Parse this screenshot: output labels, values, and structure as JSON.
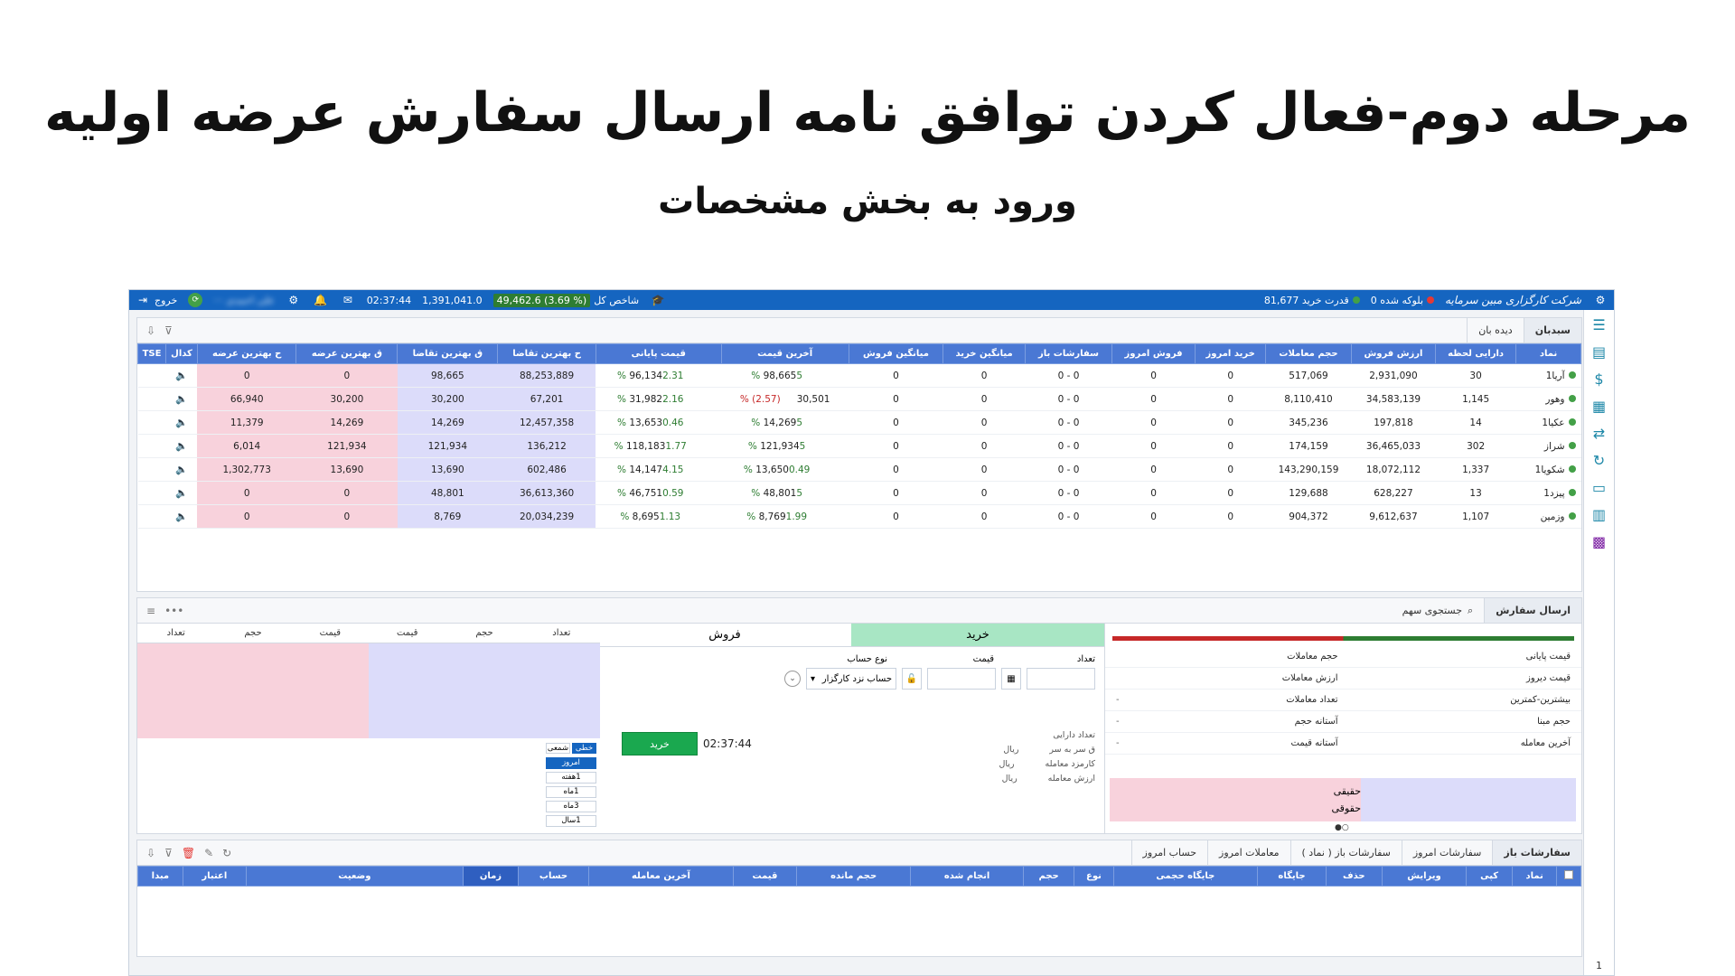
{
  "page": {
    "title": "مرحله دوم-فعال کردن توافق نامه ارسال سفارش عرضه اولیه",
    "subtitle": "ورود به بخش مشخصات"
  },
  "colors": {
    "topbar": "#1565c0",
    "table_header": "#4a78d4",
    "bid_cell": "#dcdcfa",
    "ask_cell": "#f8d2dc",
    "buy_tab": "#a8e6c4",
    "buy_button": "#1aa84f"
  },
  "topbar": {
    "brand": "شرکت کارگزاری مبین سرمایه",
    "blocked_label": "بلوکه شده 0",
    "buying_power": "قدرت خرید 81,677",
    "index_label": "شاخص کل",
    "index_value": "(% 3.69) 49,462.6",
    "total_value": "1,391,041.0",
    "time": "02:37:44",
    "username": "علی احمدی ···",
    "logout": "خروج",
    "icons": [
      "settings-icon",
      "gear-icon",
      "bell-icon",
      "mail-icon",
      "graduation-cap-icon"
    ]
  },
  "watch": {
    "tabs": [
      "سبدبان",
      "دیده بان"
    ],
    "headers": [
      "نماد",
      "دارایی لحظه",
      "ارزش فروش",
      "حجم معاملات",
      "خرید امروز",
      "فروش امروز",
      "سفارشات باز",
      "میانگین خرید",
      "میانگین فروش",
      "آخرین قیمت",
      "قیمت پایانی",
      "ح بهترین تقاضا",
      "ق بهترین تقاضا",
      "ق بهترین عرضه",
      "ح بهترین عرضه",
      "کدال",
      "TSE"
    ],
    "rows": [
      {
        "symbol": "آریا1",
        "asset": "30",
        "sell_value": "2,931,090",
        "volume": "517,069",
        "buy_today": "0",
        "sell_today": "0",
        "open_orders": "0 - 0",
        "avg_buy": "0",
        "avg_sell": "0",
        "last_pct": "5 %",
        "last_price": "98,665",
        "close_pct": "2.31 %",
        "close_price": "96,134",
        "bid_vol": "88,253,889",
        "bid_price": "98,665",
        "ask_price": "0",
        "ask_vol": "0"
      },
      {
        "symbol": "وهور",
        "asset": "1,145",
        "sell_value": "34,583,139",
        "volume": "8,110,410",
        "buy_today": "0",
        "sell_today": "0",
        "open_orders": "0 - 0",
        "avg_buy": "0",
        "avg_sell": "0",
        "last_pct": "(2.57) %",
        "last_price": "30,501",
        "close_pct": "2.16 %",
        "close_price": "31,982",
        "bid_vol": "67,201",
        "bid_price": "30,200",
        "ask_price": "30,200",
        "ask_vol": "66,940"
      },
      {
        "symbol": "عکیا1",
        "asset": "14",
        "sell_value": "197,818",
        "volume": "345,236",
        "buy_today": "0",
        "sell_today": "0",
        "open_orders": "0 - 0",
        "avg_buy": "0",
        "avg_sell": "0",
        "last_pct": "5 %",
        "last_price": "14,269",
        "close_pct": "0.46 %",
        "close_price": "13,653",
        "bid_vol": "12,457,358",
        "bid_price": "14,269",
        "ask_price": "14,269",
        "ask_vol": "11,379"
      },
      {
        "symbol": "شراز",
        "asset": "302",
        "sell_value": "36,465,033",
        "volume": "174,159",
        "buy_today": "0",
        "sell_today": "0",
        "open_orders": "0 - 0",
        "avg_buy": "0",
        "avg_sell": "0",
        "last_pct": "5 %",
        "last_price": "121,934",
        "close_pct": "1.77 %",
        "close_price": "118,183",
        "bid_vol": "136,212",
        "bid_price": "121,934",
        "ask_price": "121,934",
        "ask_vol": "6,014"
      },
      {
        "symbol": "شکویا1",
        "asset": "1,337",
        "sell_value": "18,072,112",
        "volume": "143,290,159",
        "buy_today": "0",
        "sell_today": "0",
        "open_orders": "0 - 0",
        "avg_buy": "0",
        "avg_sell": "0",
        "last_pct": "0.49 %",
        "last_price": "13,650",
        "close_pct": "4.15 %",
        "close_price": "14,147",
        "bid_vol": "602,486",
        "bid_price": "13,690",
        "ask_price": "13,690",
        "ask_vol": "1,302,773"
      },
      {
        "symbol": "پیزد1",
        "asset": "13",
        "sell_value": "628,227",
        "volume": "129,688",
        "buy_today": "0",
        "sell_today": "0",
        "open_orders": "0 - 0",
        "avg_buy": "0",
        "avg_sell": "0",
        "last_pct": "5 %",
        "last_price": "48,801",
        "close_pct": "0.59 %",
        "close_price": "46,751",
        "bid_vol": "36,613,360",
        "bid_price": "48,801",
        "ask_price": "0",
        "ask_vol": "0"
      },
      {
        "symbol": "وزمین",
        "asset": "1,107",
        "sell_value": "9,612,637",
        "volume": "904,372",
        "buy_today": "0",
        "sell_today": "0",
        "open_orders": "0 - 0",
        "avg_buy": "0",
        "avg_sell": "0",
        "last_pct": "1.99 %",
        "last_price": "8,769",
        "close_pct": "1.13 %",
        "close_price": "8,695",
        "bid_vol": "20,034,239",
        "bid_price": "8,769",
        "ask_price": "0",
        "ask_vol": "0"
      }
    ]
  },
  "order": {
    "tab": "ارسال سفارش",
    "search_placeholder": "جستجوی سهم",
    "info_labels": {
      "close_price": "قیمت پایانی",
      "trade_volume": "حجم معاملات",
      "yesterday_price": "قیمت دیروز",
      "trade_value": "ارزش معاملات",
      "max_min": "بیشترین-کمترین",
      "trade_count": "تعداد معاملات",
      "base_volume": "حجم مبنا",
      "volume_threshold": "آستانه حجم",
      "last_trade": "آخرین معامله",
      "price_threshold": "آستانه قیمت",
      "dash": "-",
      "real": "حقیقی",
      "legal": "حقوقی",
      "pager": "○●"
    },
    "buy_tab": "خرید",
    "sell_tab": "فروش",
    "field_labels": {
      "count": "تعداد",
      "price": "قیمت",
      "account_type": "نوع حساب"
    },
    "account_value": "حساب نزد کارگزار",
    "kv": [
      {
        "k": "تعداد دارایی",
        "v": ""
      },
      {
        "k": "ق سر به سر",
        "v": "ریال"
      },
      {
        "k": "کارمزد معامله",
        "v": "ریال"
      },
      {
        "k": "ارزش معامله",
        "v": "ریال"
      }
    ],
    "send_button": "خرید",
    "clock": "02:37:44",
    "ob_headers": [
      "تعداد",
      "حجم",
      "قیمت",
      "قیمت",
      "حجم",
      "تعداد"
    ],
    "chart_mode": [
      "خطی",
      "شمعی"
    ],
    "periods": [
      "امروز",
      "1هفته",
      "1ماه",
      "3ماه",
      "1سال"
    ]
  },
  "bottom": {
    "tabs": [
      "سفارشات باز",
      "سفارشات امروز",
      "سفارشات باز ( نماد )",
      "معاملات امروز",
      "حساب امروز"
    ],
    "headers": [
      "نماد",
      "کپی",
      "ویرایش",
      "حذف",
      "جایگاه",
      "جایگاه حجمی",
      "نوع",
      "حجم",
      "انجام شده",
      "حجم مانده",
      "قیمت",
      "آخرین معامله",
      "حساب",
      "زمان",
      "وضعیت",
      "اعتبار",
      "مبدا"
    ]
  },
  "sidebar": {
    "icons": [
      "menu-icon",
      "portfolio-icon",
      "money-icon",
      "clipboard-icon",
      "exchange-icon",
      "refresh-money-icon",
      "monitor-chart-icon",
      "bar-chart-icon",
      "apps-grid-icon"
    ],
    "page_number": "1"
  }
}
